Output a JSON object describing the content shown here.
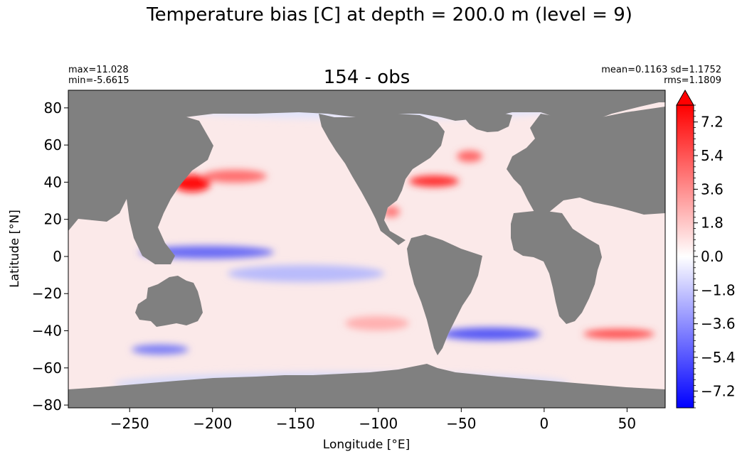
{
  "figure": {
    "suptitle": "Temperature bias [C] at depth = 200.0 m (level = 9)",
    "title": "154 - obs",
    "stats_left": [
      "max=11.028",
      "min=-5.6615"
    ],
    "stats_right": [
      "mean=0.1163 sd=1.1752",
      "rms=1.1809"
    ]
  },
  "chart_data": {
    "type": "heatmap",
    "title": "154 - obs",
    "xlabel": "Longitude [°E]",
    "ylabel": "Latitude [°N]",
    "xlim": [
      -287,
      73
    ],
    "ylim": [
      -81.5,
      89.5
    ],
    "xticks": [
      -250,
      -200,
      -150,
      -100,
      -50,
      0,
      50
    ],
    "xtick_labels": [
      "−250",
      "−200",
      "−150",
      "−100",
      "−50",
      "0",
      "50"
    ],
    "yticks": [
      80,
      60,
      40,
      20,
      0,
      -20,
      -40,
      -60,
      -80
    ],
    "ytick_labels": [
      "80",
      "60",
      "40",
      "20",
      "0",
      "−20",
      "−40",
      "−60",
      "−80"
    ],
    "colorbar": {
      "vmin": -8.1,
      "vmax": 8.1,
      "ticks": [
        7.2,
        5.4,
        3.6,
        1.8,
        0.0,
        -1.8,
        -3.6,
        -5.4,
        -7.2
      ],
      "tick_labels": [
        "7.2",
        "5.4",
        "3.6",
        "1.8",
        "0.0",
        "−1.8",
        "−3.6",
        "−5.4",
        "−7.2"
      ],
      "colormap": "bwr",
      "extend": "max"
    },
    "land_color": "#808080",
    "stats": {
      "max": 11.028,
      "min": -5.6615,
      "mean": 0.1163,
      "sd": 1.1752,
      "rms": 1.1809
    }
  }
}
